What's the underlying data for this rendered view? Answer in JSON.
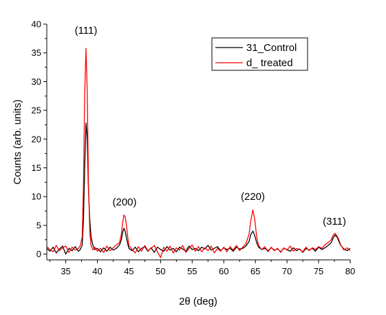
{
  "chart_data": {
    "type": "line",
    "xlabel": "2θ (deg)",
    "ylabel": "Counts (arb. units)",
    "xlim": [
      32,
      80
    ],
    "ylim": [
      -1,
      40
    ],
    "x_ticks": [
      35,
      40,
      45,
      50,
      55,
      60,
      65,
      70,
      75,
      80
    ],
    "y_ticks": [
      0,
      5,
      10,
      15,
      20,
      25,
      30,
      35,
      40
    ],
    "grid": false,
    "legend_position": "top-right",
    "peak_annotations": [
      {
        "label": "(111)",
        "x": 38.2,
        "y": 38.3
      },
      {
        "label": "(200)",
        "x": 44.3,
        "y": 8.5
      },
      {
        "label": "(220)",
        "x": 64.6,
        "y": 9.4
      },
      {
        "label": "(311)",
        "x": 77.5,
        "y": 5.1
      }
    ],
    "series": [
      {
        "name": "31_Control",
        "color": "#000000",
        "x": [
          32.0,
          32.5,
          33.0,
          33.5,
          34.0,
          34.5,
          35.0,
          35.5,
          36.0,
          36.5,
          37.0,
          37.3,
          37.6,
          37.8,
          38.0,
          38.2,
          38.4,
          38.6,
          38.8,
          39.0,
          39.3,
          39.6,
          40.0,
          40.5,
          41.0,
          41.5,
          42.0,
          42.5,
          43.0,
          43.5,
          43.8,
          44.0,
          44.2,
          44.4,
          44.6,
          44.8,
          45.0,
          45.5,
          46.0,
          46.5,
          47.0,
          47.5,
          48.0,
          48.5,
          49.0,
          49.5,
          50.0,
          50.5,
          51.0,
          51.5,
          52.0,
          52.5,
          53.0,
          53.5,
          54.0,
          54.5,
          55.0,
          55.5,
          56.0,
          56.5,
          57.0,
          57.5,
          58.0,
          58.5,
          59.0,
          59.5,
          60.0,
          60.5,
          61.0,
          61.5,
          62.0,
          62.5,
          63.0,
          63.5,
          64.0,
          64.3,
          64.6,
          64.9,
          65.2,
          65.5,
          66.0,
          66.5,
          67.0,
          67.5,
          68.0,
          68.5,
          69.0,
          69.5,
          70.0,
          70.5,
          71.0,
          71.5,
          72.0,
          72.5,
          73.0,
          73.5,
          74.0,
          74.5,
          75.0,
          75.5,
          76.0,
          76.5,
          77.0,
          77.3,
          77.6,
          77.9,
          78.2,
          78.5,
          79.0,
          79.5,
          80.0
        ],
        "y": [
          1.0,
          0.5,
          1.2,
          0.2,
          0.9,
          1.4,
          0.0,
          1.0,
          0.6,
          1.3,
          0.5,
          0.8,
          1.6,
          6.0,
          15.0,
          22.8,
          20.0,
          11.0,
          6.0,
          3.0,
          1.5,
          0.8,
          1.0,
          0.4,
          1.1,
          0.5,
          1.2,
          0.7,
          1.0,
          1.6,
          2.5,
          3.8,
          4.5,
          4.0,
          2.8,
          1.8,
          1.0,
          0.6,
          1.2,
          0.4,
          1.0,
          1.3,
          0.5,
          1.1,
          0.3,
          1.2,
          0.8,
          0.5,
          1.3,
          0.7,
          1.0,
          0.4,
          1.2,
          0.9,
          0.5,
          1.4,
          0.8,
          1.0,
          0.6,
          1.2,
          0.9,
          1.5,
          0.7,
          1.0,
          1.3,
          0.6,
          1.1,
          0.8,
          1.0,
          0.5,
          1.2,
          0.9,
          1.0,
          1.4,
          2.2,
          3.5,
          4.0,
          3.2,
          2.0,
          1.2,
          0.8,
          1.0,
          0.6,
          1.1,
          0.7,
          0.9,
          0.4,
          1.0,
          0.8,
          0.5,
          1.1,
          0.6,
          0.9,
          0.3,
          1.0,
          0.7,
          1.0,
          0.5,
          1.2,
          0.8,
          1.1,
          1.5,
          2.0,
          2.8,
          3.3,
          3.0,
          2.2,
          1.5,
          0.9,
          0.6,
          1.0
        ]
      },
      {
        "name": "d_ treated",
        "color": "#ff0000",
        "x": [
          32.0,
          32.5,
          33.0,
          33.5,
          34.0,
          34.5,
          35.0,
          35.5,
          36.0,
          36.5,
          37.0,
          37.3,
          37.6,
          37.8,
          38.0,
          38.2,
          38.4,
          38.6,
          38.8,
          39.0,
          39.3,
          39.6,
          40.0,
          40.5,
          41.0,
          41.5,
          42.0,
          42.5,
          43.0,
          43.5,
          43.8,
          44.0,
          44.2,
          44.4,
          44.6,
          44.8,
          45.0,
          45.5,
          46.0,
          46.5,
          47.0,
          47.5,
          48.0,
          48.5,
          49.0,
          49.5,
          50.0,
          50.5,
          51.0,
          51.5,
          52.0,
          52.5,
          53.0,
          53.5,
          54.0,
          54.5,
          55.0,
          55.5,
          56.0,
          56.5,
          57.0,
          57.5,
          58.0,
          58.5,
          59.0,
          59.5,
          60.0,
          60.5,
          61.0,
          61.5,
          62.0,
          62.5,
          63.0,
          63.5,
          64.0,
          64.3,
          64.6,
          64.9,
          65.2,
          65.5,
          66.0,
          66.5,
          67.0,
          67.5,
          68.0,
          68.5,
          69.0,
          69.5,
          70.0,
          70.5,
          71.0,
          71.5,
          72.0,
          72.5,
          73.0,
          73.5,
          74.0,
          74.5,
          75.0,
          75.5,
          76.0,
          76.5,
          77.0,
          77.3,
          77.6,
          77.9,
          78.2,
          78.5,
          79.0,
          79.5,
          80.0
        ],
        "y": [
          1.3,
          0.8,
          0.4,
          1.5,
          0.6,
          1.1,
          1.4,
          0.3,
          1.2,
          0.7,
          1.0,
          1.5,
          3.0,
          12.0,
          28.0,
          35.8,
          28.0,
          12.0,
          4.0,
          1.5,
          0.7,
          1.2,
          0.5,
          1.0,
          0.3,
          1.4,
          0.6,
          1.1,
          1.6,
          2.0,
          3.5,
          5.5,
          6.8,
          6.5,
          5.0,
          3.0,
          1.5,
          0.8,
          0.2,
          1.3,
          0.5,
          1.5,
          0.6,
          1.0,
          1.5,
          0.4,
          -0.6,
          1.2,
          0.5,
          1.4,
          0.2,
          1.1,
          0.7,
          1.5,
          0.3,
          1.0,
          1.6,
          0.5,
          1.3,
          0.4,
          1.1,
          0.6,
          1.4,
          0.2,
          1.0,
          0.5,
          1.2,
          0.4,
          1.3,
          0.7,
          1.5,
          0.6,
          1.2,
          1.8,
          3.5,
          6.0,
          7.7,
          6.0,
          3.0,
          1.5,
          0.8,
          1.3,
          0.4,
          1.2,
          0.6,
          1.0,
          0.3,
          1.1,
          0.7,
          1.4,
          0.5,
          1.0,
          0.8,
          0.4,
          1.2,
          0.6,
          1.1,
          0.8,
          1.3,
          1.0,
          1.6,
          2.0,
          2.5,
          3.3,
          3.6,
          3.2,
          2.5,
          1.6,
          0.7,
          1.1,
          0.6
        ]
      }
    ]
  }
}
